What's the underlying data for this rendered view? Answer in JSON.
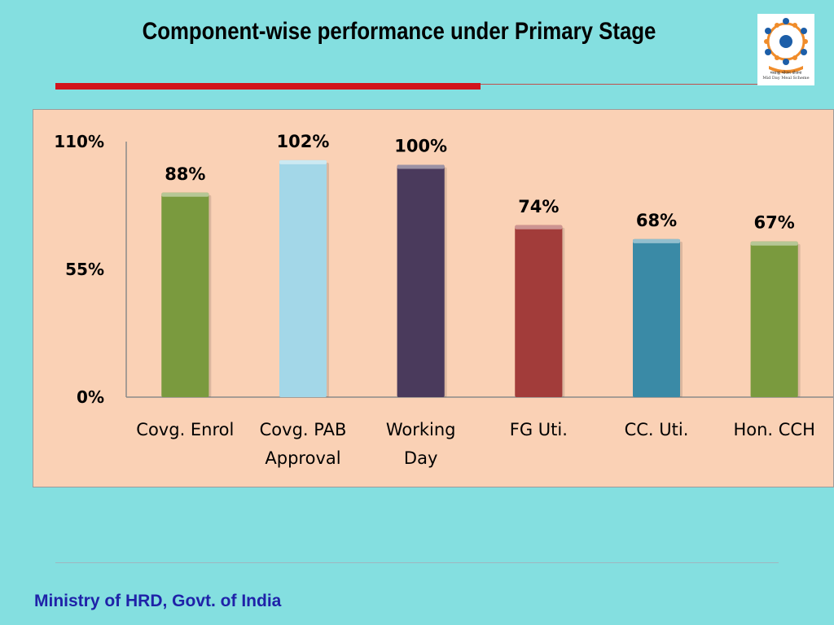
{
  "slide": {
    "title": "Component-wise performance under Primary Stage",
    "footer": "Ministry of HRD, Govt. of India"
  },
  "logo": {
    "icon": "mid-day-meal-logo",
    "caption_hindi": "मध्याह्न भोजन योजना",
    "caption_english": "Mid Day Meal Scheme"
  },
  "colors": {
    "background": "#84dfe0",
    "chart_panel": "#fad1b5",
    "title_rule": "#d2141c",
    "footer_text": "#1f22a8"
  },
  "chart_data": {
    "type": "bar",
    "categories": [
      [
        "Covg. Enrol"
      ],
      [
        "Covg. PAB",
        "Approval"
      ],
      [
        "Working",
        "Day"
      ],
      [
        "FG Uti."
      ],
      [
        "CC. Uti."
      ],
      [
        "Hon. CCH"
      ]
    ],
    "values": [
      88,
      102,
      100,
      74,
      68,
      67
    ],
    "data_labels": [
      "88%",
      "102%",
      "100%",
      "74%",
      "68%",
      "67%"
    ],
    "bar_colors": [
      "#7a9a3e",
      "#a3d7e8",
      "#4a3a5c",
      "#a23c3a",
      "#3a8aa6",
      "#7a9a3e"
    ],
    "yticks": [
      {
        "value": 0,
        "label": "0%"
      },
      {
        "value": 55,
        "label": "55%"
      },
      {
        "value": 110,
        "label": "110%"
      }
    ],
    "ylim": [
      0,
      110
    ],
    "grid": false,
    "legend": "none"
  }
}
